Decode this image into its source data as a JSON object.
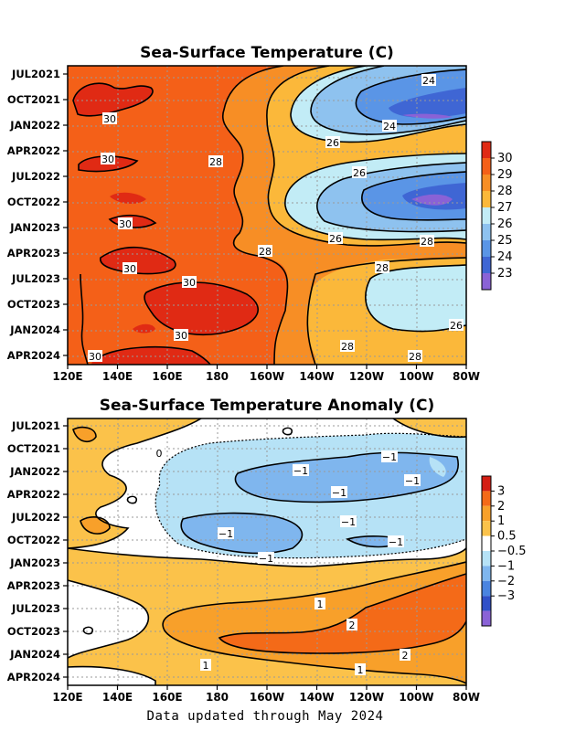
{
  "footer": "Data updated through May 2024",
  "chart_data": [
    {
      "type": "heatmap",
      "title": "Sea-Surface Temperature (C)",
      "xlabel": "",
      "ylabel": "",
      "x_ticks": [
        "120E",
        "140E",
        "160E",
        "180",
        "160W",
        "140W",
        "120W",
        "100W",
        "80W"
      ],
      "y_ticks": [
        "JUL2021",
        "OCT2021",
        "JAN2022",
        "APR2022",
        "JUL2022",
        "OCT2022",
        "JAN2023",
        "APR2023",
        "JUL2023",
        "OCT2023",
        "JAN2024",
        "APR2024"
      ],
      "colorbar": {
        "labels": [
          "30",
          "29",
          "28",
          "27",
          "26",
          "25",
          "24",
          "23"
        ],
        "colors": [
          "#e02a14",
          "#f46018",
          "#f78e25",
          "#fbb83a",
          "#c2ecf6",
          "#8ec2ef",
          "#5a95e6",
          "#3f66d4",
          "#8a62d6"
        ]
      },
      "contour_labels": [
        "24",
        "24",
        "26",
        "26",
        "26",
        "28",
        "28",
        "28",
        "28",
        "28",
        "28",
        "30",
        "30",
        "30",
        "30",
        "30",
        "30",
        "30",
        "26"
      ]
    },
    {
      "type": "heatmap",
      "title": "Sea-Surface Temperature Anomaly (C)",
      "xlabel": "",
      "ylabel": "",
      "x_ticks": [
        "120E",
        "140E",
        "160E",
        "180",
        "160W",
        "140W",
        "120W",
        "100W",
        "80W"
      ],
      "y_ticks": [
        "JUL2021",
        "OCT2021",
        "JAN2022",
        "APR2022",
        "JUL2022",
        "OCT2022",
        "JAN2023",
        "APR2023",
        "JUL2023",
        "OCT2023",
        "JAN2024",
        "APR2024"
      ],
      "colorbar": {
        "labels": [
          "3",
          "2",
          "1",
          "0.5",
          "−0.5",
          "−1",
          "−2",
          "−3"
        ],
        "colors": [
          "#d41e14",
          "#f46a18",
          "#f8a02a",
          "#fbc24a",
          "#ffffff",
          "#b6e2f6",
          "#7fb6ee",
          "#4a84e0",
          "#3050c8",
          "#8a62d6"
        ]
      },
      "contour_labels": [
        "0",
        "−1",
        "−1",
        "−1",
        "−1",
        "−1",
        "−1",
        "−1",
        "−1",
        "1",
        "1",
        "1",
        "2",
        "2"
      ]
    }
  ]
}
